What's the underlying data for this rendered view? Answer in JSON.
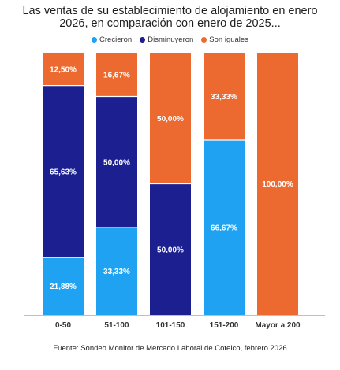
{
  "chart_data": {
    "type": "bar",
    "stacked": true,
    "title_lines": [
      "Las ventas de su establecimiento de alojamiento en enero",
      "2026, en comparación con enero de 2025..."
    ],
    "categories": [
      "0-50",
      "51-100",
      "101-150",
      "151-200",
      "Mayor a 200"
    ],
    "series": [
      {
        "name": "Crecieron",
        "color": "#1fa2f2",
        "values": [
          21.88,
          33.33,
          0,
          66.67,
          0
        ],
        "labels": [
          "21,88%",
          "33,33%",
          "",
          "66,67%",
          ""
        ]
      },
      {
        "name": "Disminuyeron",
        "color": "#1c1f8f",
        "values": [
          65.63,
          50.0,
          50.0,
          0,
          0
        ],
        "labels": [
          "65,63%",
          "50,00%",
          "50,00%",
          "",
          ""
        ]
      },
      {
        "name": "Son iguales",
        "color": "#ec6a2f",
        "values": [
          12.5,
          16.67,
          50.0,
          33.33,
          100.0
        ],
        "labels": [
          "12,50%",
          "16,67%",
          "50,00%",
          "33,33%",
          "100,00%"
        ]
      }
    ],
    "ylim": [
      0,
      100
    ],
    "legend_position": "top",
    "grid": false
  },
  "source": "Fuente: Sondeo Monitor de Mercado Laboral de Cotelco, febrero 2026"
}
